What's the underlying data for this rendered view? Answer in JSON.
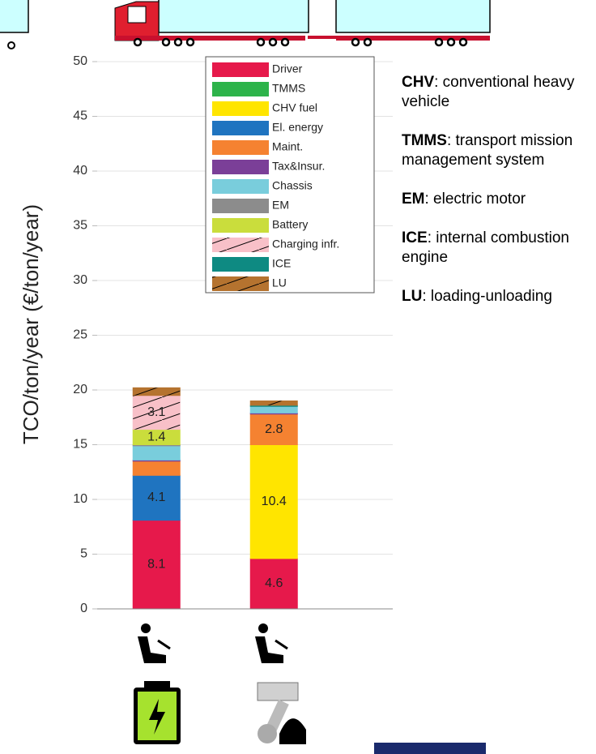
{
  "chart_data": {
    "type": "stacked_bar",
    "y_label": "TCO/ton/year (€/ton/year)",
    "categories": [
      null,
      null,
      null,
      null
    ],
    "ylim": [
      0,
      50
    ],
    "yticks": [
      0,
      5,
      10,
      15,
      20,
      25,
      30,
      35,
      40,
      45,
      50
    ],
    "grid": true,
    "legend": "top-right",
    "series": [
      {
        "name": "Driver",
        "color": "#e6194b",
        "values": [
          8.1,
          0,
          4.6,
          0
        ],
        "value_labels": [
          "8.1",
          null,
          "4.6",
          null
        ]
      },
      {
        "name": "TMMS",
        "color": "#2db34a",
        "values": [
          0,
          0,
          0,
          0
        ]
      },
      {
        "name": "CHV fuel",
        "color": "#ffe500",
        "values": [
          0,
          0,
          10.4,
          0
        ],
        "value_labels": [
          null,
          null,
          "10.4",
          null
        ]
      },
      {
        "name": "El. energy",
        "color": "#1f74c0",
        "values": [
          4.1,
          0,
          0,
          0
        ],
        "value_labels": [
          "4.1",
          null,
          null,
          null
        ]
      },
      {
        "name": "Maint.",
        "color": "#f58231",
        "values": [
          1.3,
          0,
          2.8,
          0
        ],
        "value_labels": [
          null,
          null,
          "2.8",
          null
        ]
      },
      {
        "name": "Tax&Insur.",
        "color": "#7b3f98",
        "values": [
          0.1,
          0,
          0.1,
          0
        ]
      },
      {
        "name": "Chassis",
        "color": "#79cddc",
        "values": [
          1.3,
          0,
          0.6,
          0
        ]
      },
      {
        "name": "EM",
        "color": "#8c8c8c",
        "values": [
          0.1,
          0,
          0,
          0
        ]
      },
      {
        "name": "Battery",
        "color": "#cadd3c",
        "values": [
          1.4,
          0,
          0,
          0
        ],
        "value_labels": [
          "1.4",
          null,
          null,
          null
        ]
      },
      {
        "name": "Charging infr.",
        "color": "#f8c0c8",
        "hatch": true,
        "values": [
          3.1,
          0,
          0,
          0
        ],
        "value_labels": [
          "3.1",
          null,
          null,
          null
        ]
      },
      {
        "name": "ICE",
        "color": "#0e8a82",
        "values": [
          0,
          0,
          0.1,
          0
        ]
      },
      {
        "name": "LU",
        "color": "#b5732f",
        "hatch": true,
        "values": [
          0.7,
          0,
          0.4,
          0
        ]
      }
    ],
    "annotations": [
      {
        "term": "CHV",
        "text": ": conventional heavy vehicle"
      },
      {
        "term": "TMMS",
        "text": ": transport mission management system"
      },
      {
        "term": "EM",
        "text": ": electric motor"
      },
      {
        "term": "ICE",
        "text": ": internal combustion engine"
      },
      {
        "term": "LU",
        "text": ": loading-unloading"
      }
    ]
  }
}
